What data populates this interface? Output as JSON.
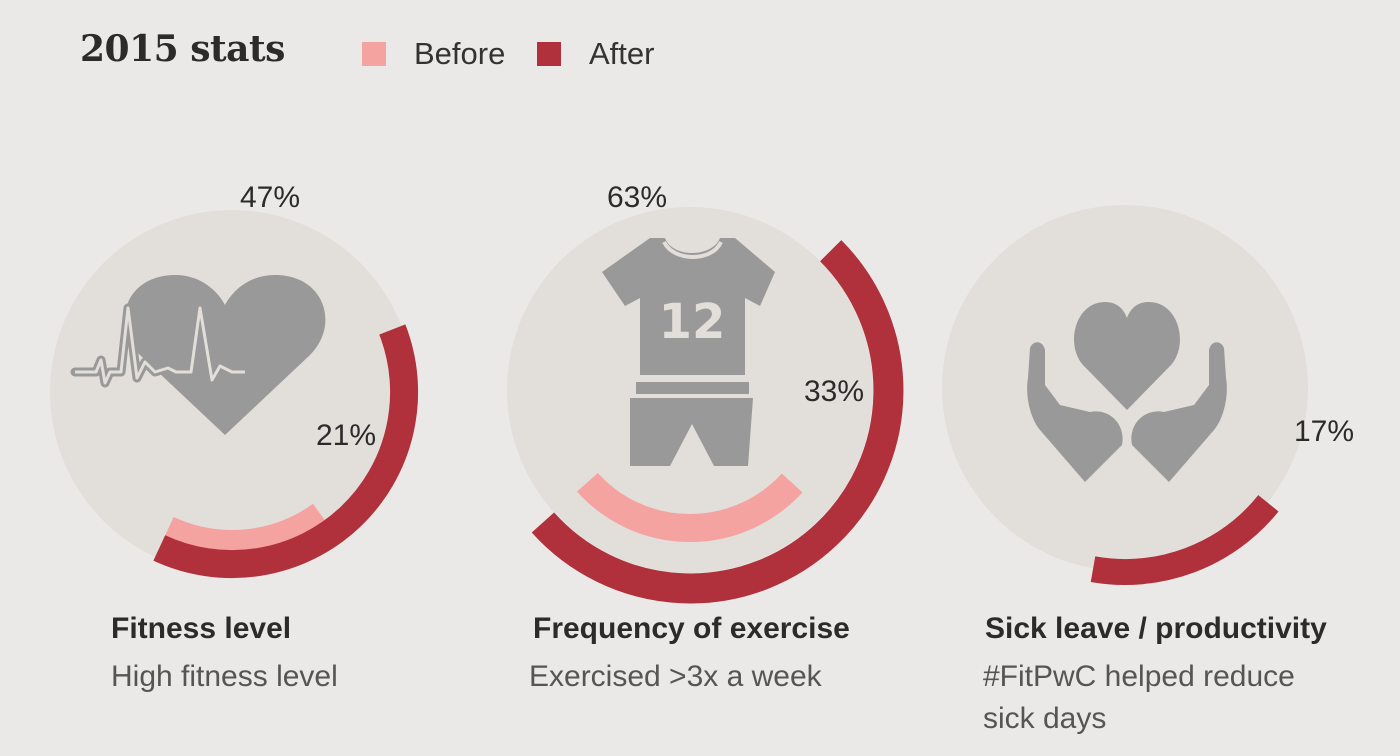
{
  "header": {
    "title": "2015 stats"
  },
  "legend": [
    {
      "label": "Before",
      "color": "#f4a3a1"
    },
    {
      "label": "After",
      "color": "#b0303b"
    }
  ],
  "colors": {
    "background": "#ebe9e7",
    "circle": "#e2deda",
    "icon": "#999999"
  },
  "chart_data": [
    {
      "type": "radial-bar",
      "title": "Fitness level",
      "subtitle": "High fitness level",
      "icon": "heartbeat-icon",
      "series": [
        {
          "name": "Before",
          "value": 21,
          "label": "21%"
        },
        {
          "name": "After",
          "value": 47,
          "label": "47%"
        }
      ]
    },
    {
      "type": "radial-bar",
      "title": "Frequency of exercise",
      "subtitle": "Exercised >3x a week",
      "icon": "jersey-icon",
      "icon_text": "12",
      "series": [
        {
          "name": "Before",
          "value": 33,
          "label": "33%"
        },
        {
          "name": "After",
          "value": 63,
          "label": "63%"
        }
      ]
    },
    {
      "type": "radial-bar",
      "title": "Sick leave / productivity",
      "subtitle": "#FitPwC helped reduce sick days",
      "icon": "hands-heart-icon",
      "series": [
        {
          "name": "After",
          "value": 17,
          "label": "17%"
        }
      ]
    }
  ]
}
